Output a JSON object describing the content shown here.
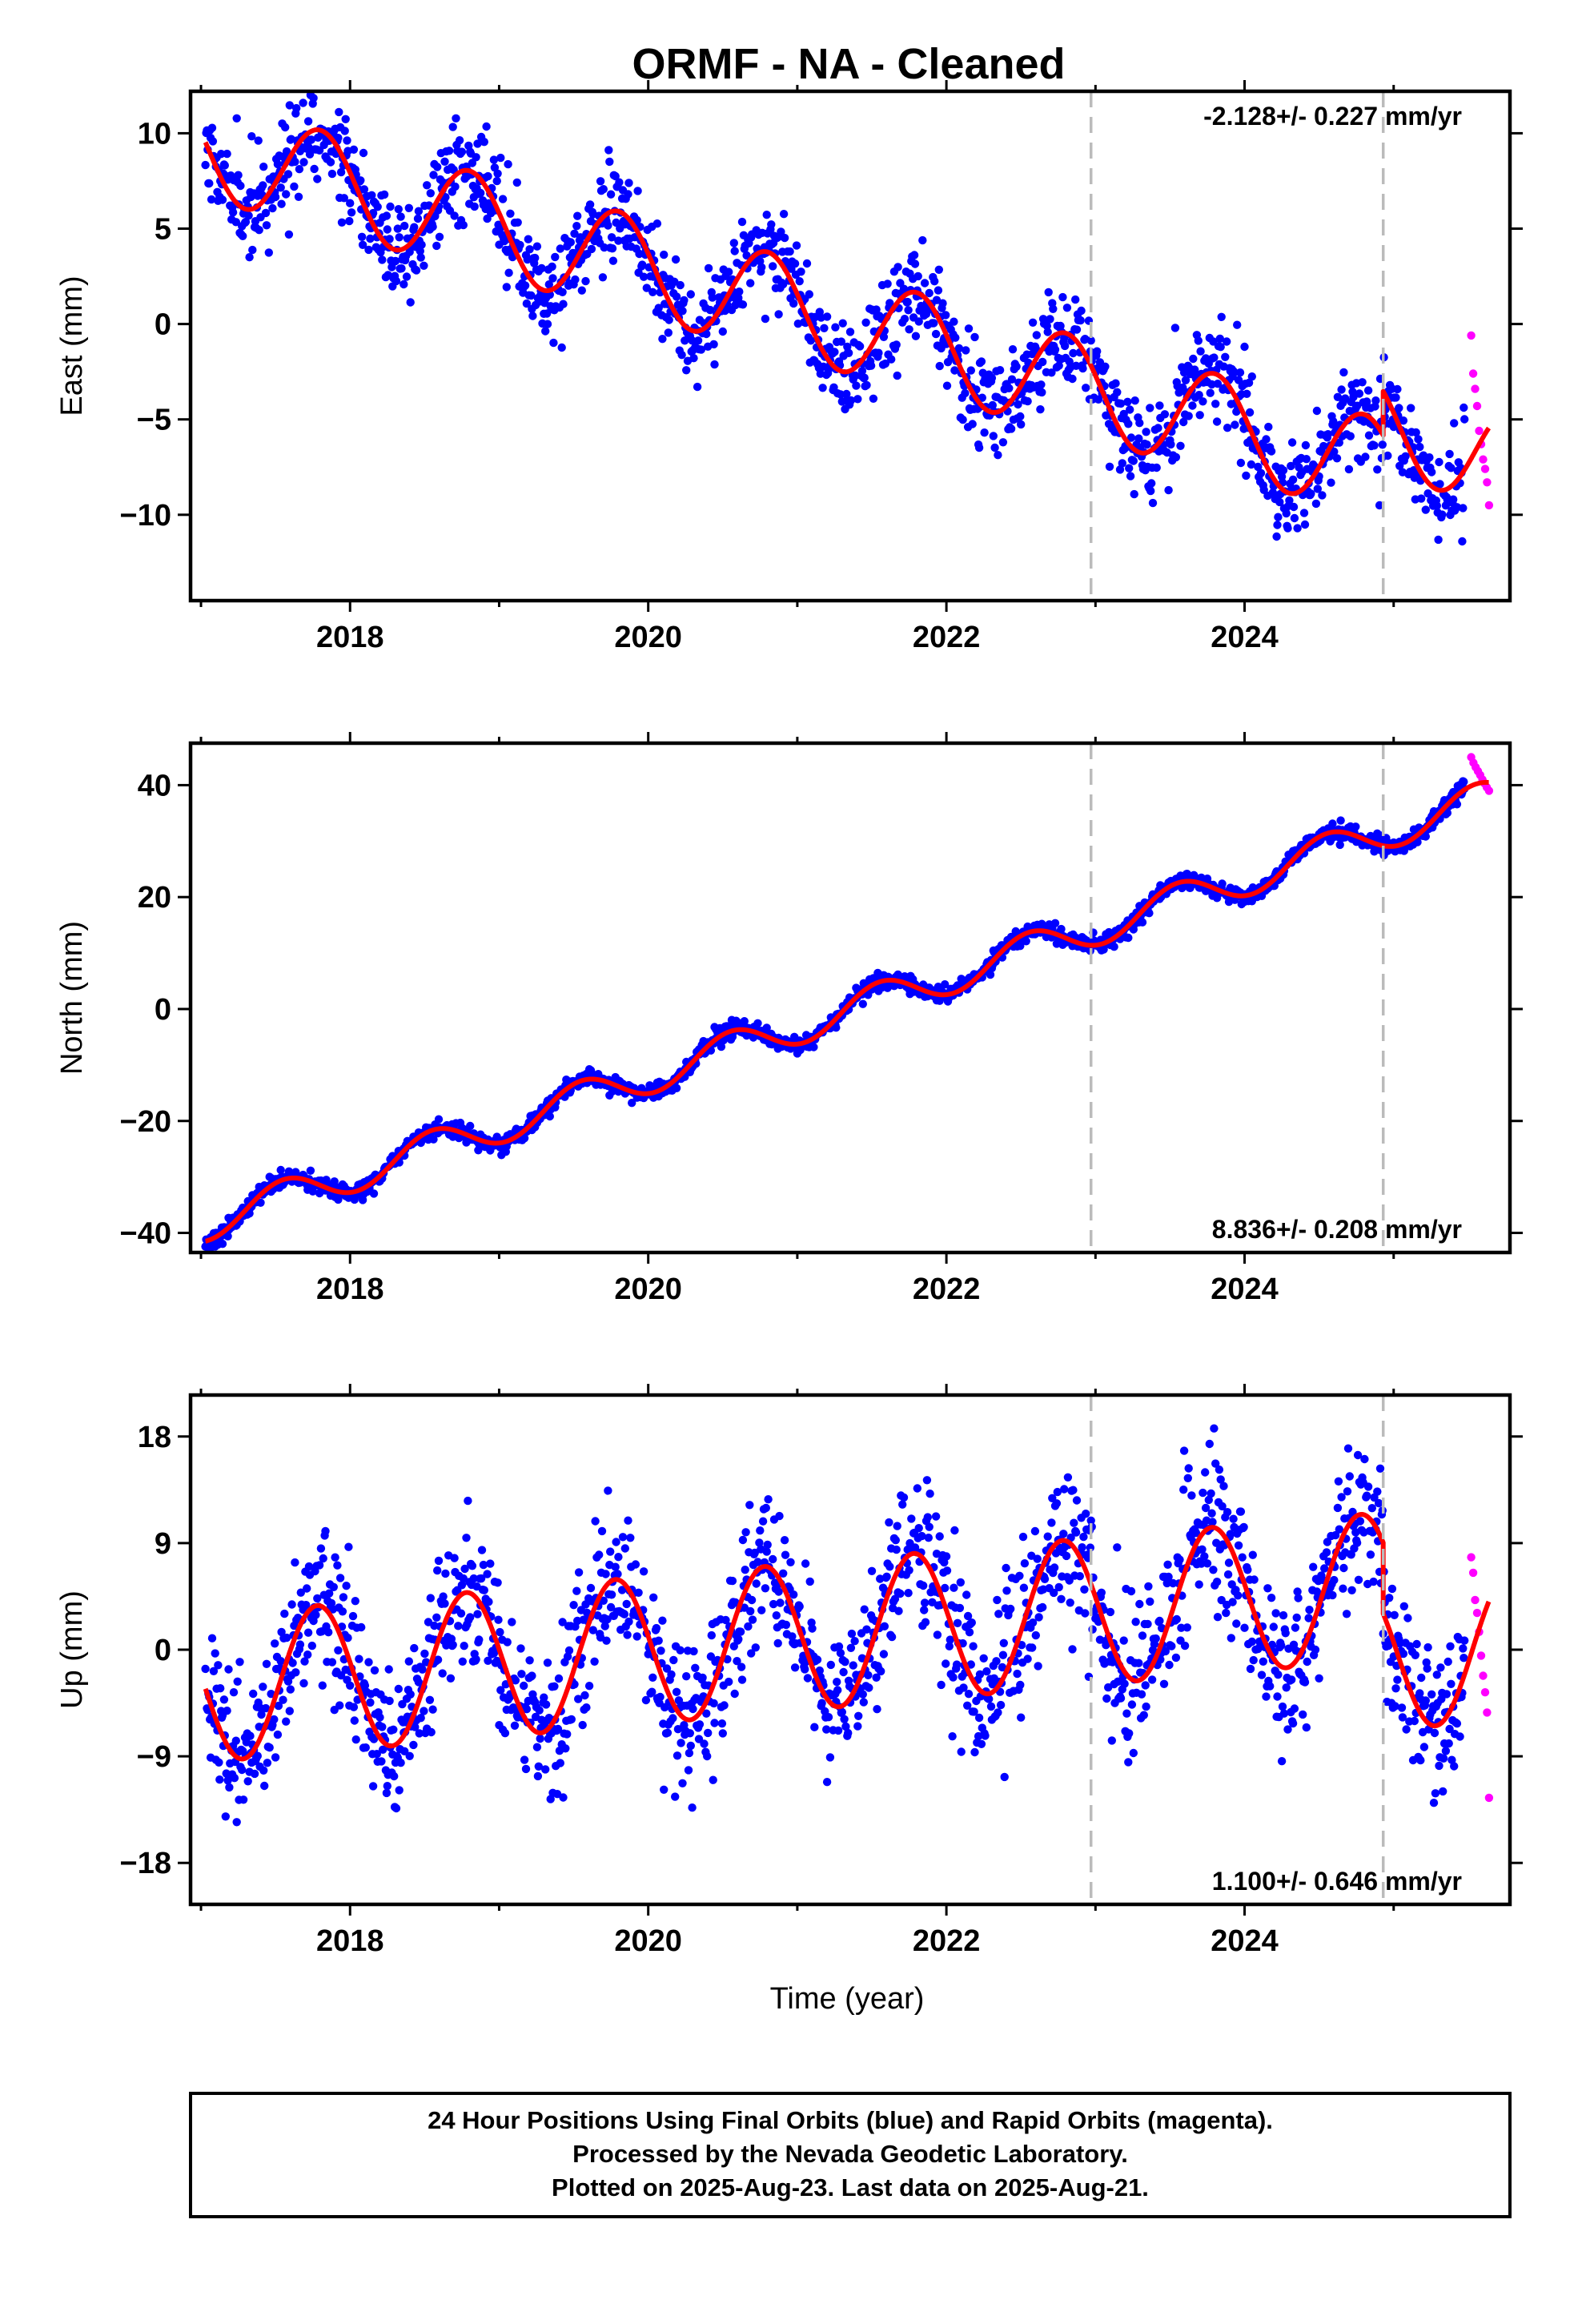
{
  "title": "ORMF  - NA - Cleaned",
  "footer": {
    "line1": "24 Hour Positions Using Final Orbits (blue) and Rapid Orbits (magenta).",
    "line2": "Processed by the Nevada Geodetic Laboratory.",
    "line3": "Plotted on 2025-Aug-23. Last data on 2025-Aug-21."
  },
  "colors": {
    "final": "#0000ff",
    "rapid": "#ff00ff",
    "model": "#ff0000",
    "breaks": "#bbbbbb"
  },
  "chart_data": [
    {
      "type": "scatter",
      "ylabel": "East (mm)",
      "xlabel": "",
      "xlim": [
        2016.93,
        2025.78
      ],
      "ylim": [
        -14.5,
        12.2
      ],
      "xticks": [
        2018,
        2020,
        2022,
        2024
      ],
      "yticks": [
        10,
        5,
        0,
        -5,
        -10
      ],
      "ytick_labels": [
        "10",
        "5",
        "0",
        "−5",
        "−10"
      ],
      "rate": "-2.128+/- 0.227 mm/yr",
      "rate_position": "top-right",
      "breaks": [
        2022.97,
        2024.93
      ],
      "model": {
        "slope": -2.128,
        "intercept": 9.2,
        "amplitude": 2.6,
        "phase": 2017.55,
        "offsets": [
          {
            "t": 2024.93,
            "step": 2.3
          }
        ],
        "x_start": 2017.03,
        "x_end": 2025.64
      },
      "scatter": {
        "seed": 11,
        "noise": 1.25,
        "x_start": 2017.03,
        "x_end": 2025.48,
        "step": 0.005
      },
      "rapid": {
        "x_start": 2025.52,
        "x_end": 2025.64,
        "values": [
          -0.6,
          -2.6,
          -3.4,
          -4.3,
          -5.6,
          -6.3,
          -7.1,
          -7.6,
          -8.3,
          -9.5
        ]
      }
    },
    {
      "type": "scatter",
      "ylabel": "North (mm)",
      "xlabel": "",
      "xlim": [
        2016.93,
        2025.78
      ],
      "ylim": [
        -43.5,
        47.5
      ],
      "xticks": [
        2018,
        2020,
        2022,
        2024
      ],
      "yticks": [
        40,
        20,
        0,
        -20,
        -40
      ],
      "ytick_labels": [
        "40",
        "20",
        "0",
        "−20",
        "−40"
      ],
      "rate": "8.836+/- 0.208 mm/yr",
      "rate_position": "bottom-right",
      "breaks": [
        2022.97,
        2024.93
      ],
      "model": {
        "slope": 8.836,
        "intercept": -38.3,
        "amplitude": 3.2,
        "phase": 2017.3,
        "offsets": [],
        "x_start": 2017.03,
        "x_end": 2025.64
      },
      "scatter": {
        "seed": 23,
        "noise": 0.75,
        "x_start": 2017.03,
        "x_end": 2025.48,
        "step": 0.005
      },
      "rapid": {
        "x_start": 2025.52,
        "x_end": 2025.64,
        "values": [
          45.0,
          44.0,
          43.2,
          42.5,
          41.8,
          41.0,
          40.3,
          39.6,
          39.0
        ]
      }
    },
    {
      "type": "scatter",
      "ylabel": "Up (mm)",
      "xlabel": "Time (year)",
      "xlim": [
        2016.93,
        2025.78
      ],
      "ylim": [
        -21.5,
        21.5
      ],
      "xticks": [
        2018,
        2020,
        2022,
        2024
      ],
      "yticks": [
        18,
        9,
        0,
        -9,
        -18
      ],
      "ytick_labels": [
        "18",
        "9",
        "0",
        "−9",
        "−18"
      ],
      "rate": "1.100+/- 0.646 mm/yr",
      "rate_position": "bottom-right",
      "breaks": [
        2022.97,
        2024.93
      ],
      "model": {
        "slope": 1.1,
        "intercept": -3.3,
        "amplitude": 6.2,
        "phase": 2017.53,
        "offsets": [
          {
            "t": 2024.93,
            "step": -6.0
          }
        ],
        "x_start": 2017.03,
        "x_end": 2025.64
      },
      "scatter": {
        "seed": 37,
        "noise": 3.1,
        "x_start": 2017.03,
        "x_end": 2025.48,
        "step": 0.005
      },
      "rapid": {
        "x_start": 2025.52,
        "x_end": 2025.64,
        "values": [
          7.8,
          6.5,
          4.2,
          3.1,
          1.5,
          -0.5,
          -2.2,
          -3.6,
          -5.3,
          -12.5
        ]
      }
    }
  ]
}
